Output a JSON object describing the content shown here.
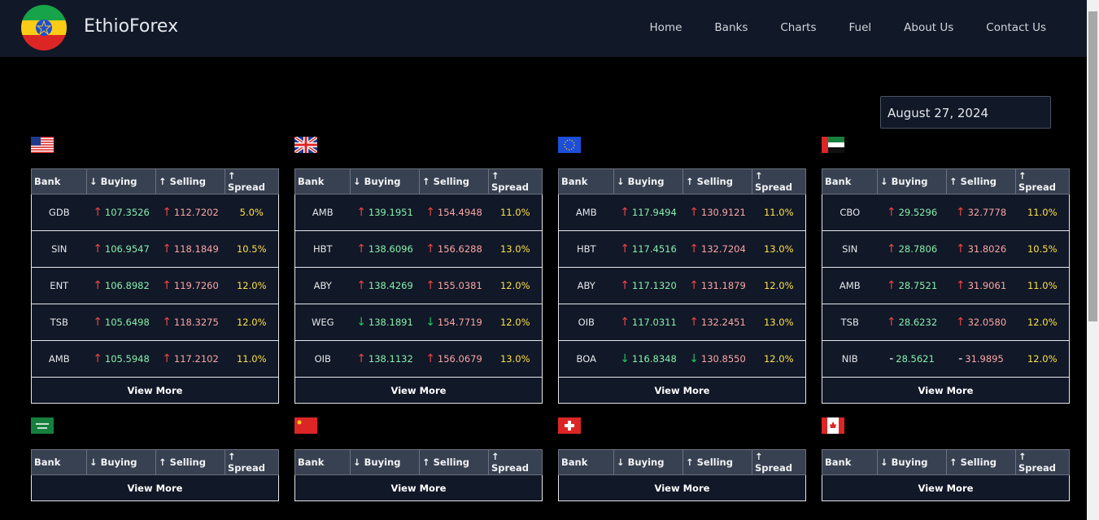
{
  "nav": {
    "brand": "EthioForex",
    "links": [
      "Home",
      "Banks",
      "Charts",
      "Fuel",
      "About Us",
      "Contact Us"
    ]
  },
  "date": "August 27, 2024",
  "table_header": [
    "Bank",
    "↓ Buying",
    "↑ Selling",
    "↑ Spread"
  ],
  "view_more": "View More",
  "cards": [
    {
      "currency": "USD",
      "rows": [
        {
          "bank": "GDB",
          "buying_arrow": {
            "symbol": "↑",
            "color": "#ef4444"
          },
          "buying": "107.3526",
          "selling_arrow": {
            "symbol": "↑",
            "color": "#ef4444"
          },
          "selling": "112.7202",
          "spread": "5.0%"
        },
        {
          "bank": "SIN",
          "buying_arrow": {
            "symbol": "↑",
            "color": "#ef4444"
          },
          "buying": "106.9547",
          "selling_arrow": {
            "symbol": "↑",
            "color": "#ef4444"
          },
          "selling": "118.1849",
          "spread": "10.5%"
        },
        {
          "bank": "ENT",
          "buying_arrow": {
            "symbol": "↑",
            "color": "#ef4444"
          },
          "buying": "106.8982",
          "selling_arrow": {
            "symbol": "↑",
            "color": "#ef4444"
          },
          "selling": "119.7260",
          "spread": "12.0%"
        },
        {
          "bank": "TSB",
          "buying_arrow": {
            "symbol": "↑",
            "color": "#ef4444"
          },
          "buying": "105.6498",
          "selling_arrow": {
            "symbol": "↑",
            "color": "#ef4444"
          },
          "selling": "118.3275",
          "spread": "12.0%"
        },
        {
          "bank": "AMB",
          "buying_arrow": {
            "symbol": "↑",
            "color": "#ef4444"
          },
          "buying": "105.5948",
          "selling_arrow": {
            "symbol": "↑",
            "color": "#ef4444"
          },
          "selling": "117.2102",
          "spread": "11.0%"
        }
      ]
    },
    {
      "currency": "GBP",
      "rows": [
        {
          "bank": "AMB",
          "buying_arrow": {
            "symbol": "↑",
            "color": "#ef4444"
          },
          "buying": "139.1951",
          "selling_arrow": {
            "symbol": "↑",
            "color": "#ef4444"
          },
          "selling": "154.4948",
          "spread": "11.0%"
        },
        {
          "bank": "HBT",
          "buying_arrow": {
            "symbol": "↑",
            "color": "#ef4444"
          },
          "buying": "138.6096",
          "selling_arrow": {
            "symbol": "↑",
            "color": "#ef4444"
          },
          "selling": "156.6288",
          "spread": "13.0%"
        },
        {
          "bank": "ABY",
          "buying_arrow": {
            "symbol": "↑",
            "color": "#ef4444"
          },
          "buying": "138.4269",
          "selling_arrow": {
            "symbol": "↑",
            "color": "#ef4444"
          },
          "selling": "155.0381",
          "spread": "12.0%"
        },
        {
          "bank": "WEG",
          "buying_arrow": {
            "symbol": "↓",
            "color": "#22c55e"
          },
          "buying": "138.1891",
          "selling_arrow": {
            "symbol": "↓",
            "color": "#22c55e"
          },
          "selling": "154.7719",
          "spread": "12.0%"
        },
        {
          "bank": "OIB",
          "buying_arrow": {
            "symbol": "↑",
            "color": "#ef4444"
          },
          "buying": "138.1132",
          "selling_arrow": {
            "symbol": "↑",
            "color": "#ef4444"
          },
          "selling": "156.0679",
          "spread": "13.0%"
        }
      ]
    },
    {
      "currency": "EUR",
      "rows": [
        {
          "bank": "AMB",
          "buying_arrow": {
            "symbol": "↑",
            "color": "#ef4444"
          },
          "buying": "117.9494",
          "selling_arrow": {
            "symbol": "↑",
            "color": "#ef4444"
          },
          "selling": "130.9121",
          "spread": "11.0%"
        },
        {
          "bank": "HBT",
          "buying_arrow": {
            "symbol": "↑",
            "color": "#ef4444"
          },
          "buying": "117.4516",
          "selling_arrow": {
            "symbol": "↑",
            "color": "#ef4444"
          },
          "selling": "132.7204",
          "spread": "13.0%"
        },
        {
          "bank": "ABY",
          "buying_arrow": {
            "symbol": "↑",
            "color": "#ef4444"
          },
          "buying": "117.1320",
          "selling_arrow": {
            "symbol": "↑",
            "color": "#ef4444"
          },
          "selling": "131.1879",
          "spread": "12.0%"
        },
        {
          "bank": "OIB",
          "buying_arrow": {
            "symbol": "↑",
            "color": "#ef4444"
          },
          "buying": "117.0311",
          "selling_arrow": {
            "symbol": "↑",
            "color": "#ef4444"
          },
          "selling": "132.2451",
          "spread": "13.0%"
        },
        {
          "bank": "BOA",
          "buying_arrow": {
            "symbol": "↓",
            "color": "#22c55e"
          },
          "buying": "116.8348",
          "selling_arrow": {
            "symbol": "↓",
            "color": "#22c55e"
          },
          "selling": "130.8550",
          "spread": "12.0%"
        }
      ]
    },
    {
      "currency": "AED",
      "rows": [
        {
          "bank": "CBO",
          "buying_arrow": {
            "symbol": "↑",
            "color": "#ef4444"
          },
          "buying": "29.5296",
          "selling_arrow": {
            "symbol": "↑",
            "color": "#ef4444"
          },
          "selling": "32.7778",
          "spread": "11.0%"
        },
        {
          "bank": "SIN",
          "buying_arrow": {
            "symbol": "↑",
            "color": "#ef4444"
          },
          "buying": "28.7806",
          "selling_arrow": {
            "symbol": "↑",
            "color": "#ef4444"
          },
          "selling": "31.8026",
          "spread": "10.5%"
        },
        {
          "bank": "AMB",
          "buying_arrow": {
            "symbol": "↑",
            "color": "#ef4444"
          },
          "buying": "28.7521",
          "selling_arrow": {
            "symbol": "↑",
            "color": "#ef4444"
          },
          "selling": "31.9061",
          "spread": "11.0%"
        },
        {
          "bank": "TSB",
          "buying_arrow": {
            "symbol": "↑",
            "color": "#ef4444"
          },
          "buying": "28.6232",
          "selling_arrow": {
            "symbol": "↑",
            "color": "#ef4444"
          },
          "selling": "32.0580",
          "spread": "12.0%"
        },
        {
          "bank": "NIB",
          "buying_arrow": {
            "symbol": "-",
            "color": "#ffffff"
          },
          "buying": "28.5621",
          "selling_arrow": {
            "symbol": "-",
            "color": "#ffffff"
          },
          "selling": "31.9895",
          "spread": "12.0%"
        }
      ]
    },
    {
      "currency": "SAR",
      "rows": []
    },
    {
      "currency": "CNY",
      "rows": []
    },
    {
      "currency": "CHF",
      "rows": []
    },
    {
      "currency": "CAD",
      "rows": []
    }
  ]
}
